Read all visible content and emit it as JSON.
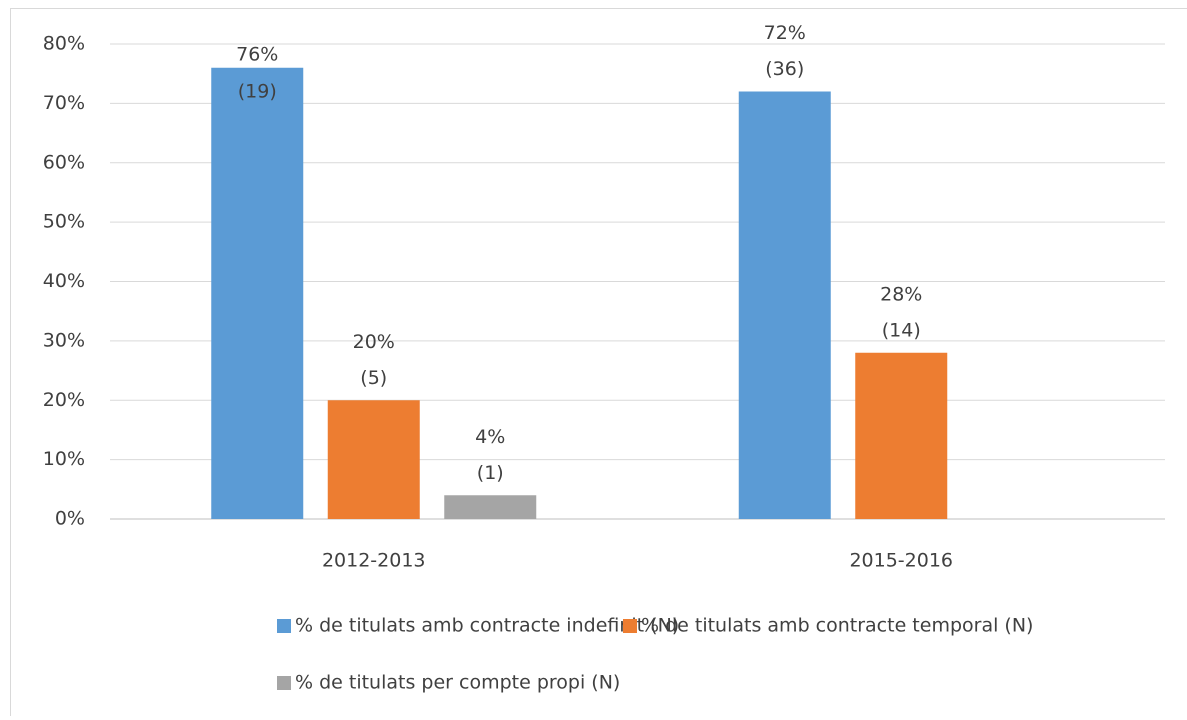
{
  "chart_data": {
    "type": "bar",
    "categories": [
      "2012-2013",
      "2015-2016"
    ],
    "series": [
      {
        "name": "% de titulats amb contracte indefinit (N)",
        "color": "#5b9bd5",
        "values": [
          76,
          72
        ],
        "value_labels": [
          "76%",
          "72%"
        ],
        "count_labels": [
          "(19)",
          "(36)"
        ]
      },
      {
        "name": "% de titulats amb contracte temporal (N)",
        "color": "#ed7d31",
        "values": [
          20,
          28
        ],
        "value_labels": [
          "20%",
          "28%"
        ],
        "count_labels": [
          "(5)",
          "(14)"
        ]
      },
      {
        "name": "% de titulats per compte propi (N)",
        "color": "#a5a5a5",
        "values": [
          4,
          null
        ],
        "value_labels": [
          "4%",
          null
        ],
        "count_labels": [
          "(1)",
          null
        ]
      }
    ],
    "ylim": [
      0,
      80
    ],
    "yticks": [
      {
        "value": 0,
        "label": "0%"
      },
      {
        "value": 10,
        "label": "10%"
      },
      {
        "value": 20,
        "label": "20%"
      },
      {
        "value": 30,
        "label": "30%"
      },
      {
        "value": 40,
        "label": "40%"
      },
      {
        "value": 50,
        "label": "50%"
      },
      {
        "value": 60,
        "label": "60%"
      },
      {
        "value": 70,
        "label": "70%"
      },
      {
        "value": 80,
        "label": "80%"
      }
    ],
    "grid": true
  }
}
